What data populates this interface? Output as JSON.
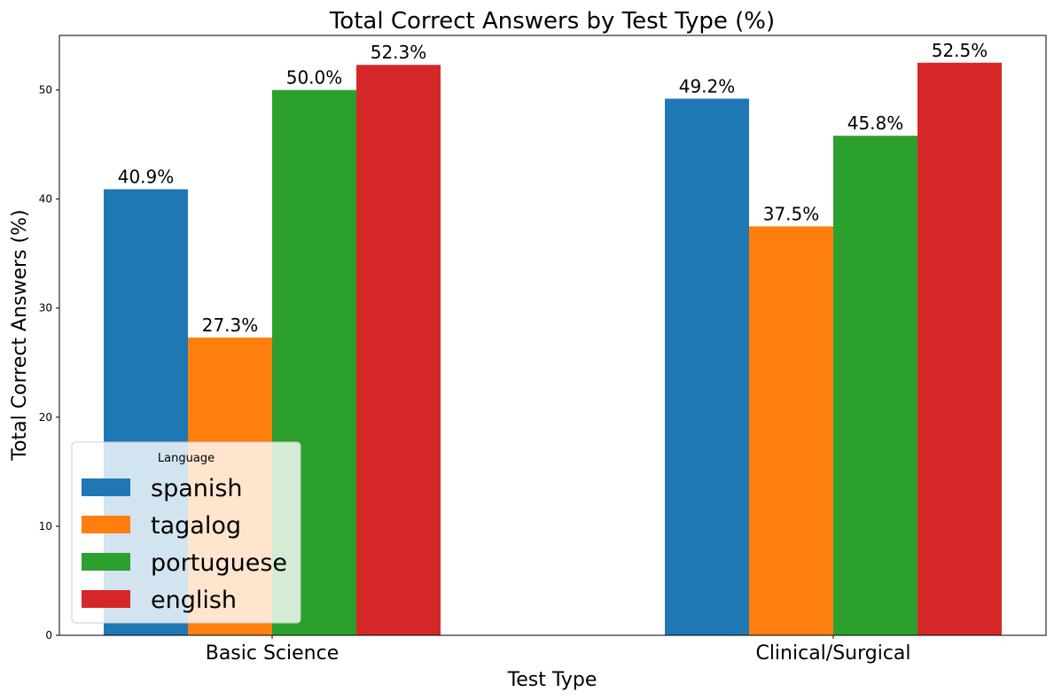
{
  "chart_data": {
    "type": "bar",
    "title": "Total Correct Answers by Test Type (%)",
    "xlabel": "Test Type",
    "ylabel": "Total Correct Answers (%)",
    "categories": [
      "Basic Science",
      "Clinical/Surgical"
    ],
    "ylim": [
      0,
      55
    ],
    "yticks": [
      "0",
      "10",
      "20",
      "30",
      "40",
      "50"
    ],
    "grid": false,
    "legend": {
      "title": "Language",
      "placement": "lower-left"
    },
    "series": [
      {
        "name": "spanish",
        "color": "#1f77b4",
        "values": [
          40.9,
          49.2
        ],
        "labels": [
          "40.9%",
          "49.2%"
        ]
      },
      {
        "name": "tagalog",
        "color": "#ff7f0e",
        "values": [
          27.3,
          37.5
        ],
        "labels": [
          "27.3%",
          "37.5%"
        ]
      },
      {
        "name": "portuguese",
        "color": "#2ca02c",
        "values": [
          50.0,
          45.8
        ],
        "labels": [
          "50.0%",
          "45.8%"
        ]
      },
      {
        "name": "english",
        "color": "#d62728",
        "values": [
          52.3,
          52.5
        ],
        "labels": [
          "52.3%",
          "52.5%"
        ]
      }
    ]
  }
}
